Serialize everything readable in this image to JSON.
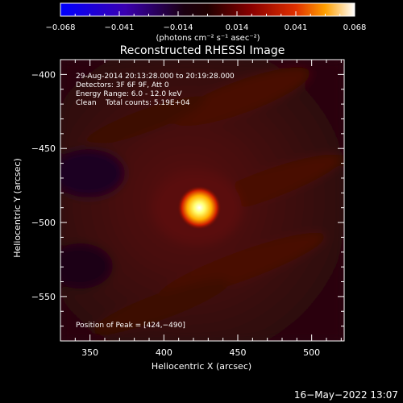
{
  "chart_data": {
    "type": "heatmap",
    "title": "Reconstructed RHESSI Image",
    "xlabel": "Heliocentric X (arcsec)",
    "ylabel": "Heliocentric Y (arcsec)",
    "xlim": [
      330,
      522
    ],
    "ylim": [
      -580,
      -390
    ],
    "xticks": [
      350,
      400,
      450,
      500
    ],
    "yticks": [
      -400,
      -450,
      -500,
      -550
    ],
    "xtick_labels": [
      "350",
      "400",
      "450",
      "500"
    ],
    "ytick_labels": [
      "−400",
      "−450",
      "−500",
      "−550"
    ],
    "colorbar": {
      "range": [
        -0.068,
        0.068
      ],
      "tick_labels": [
        "−0.068",
        "−0.041",
        "−0.014",
        "0.014",
        "0.041",
        "0.068"
      ],
      "unit_label": "(photons cm⁻² s⁻¹ asec⁻²)"
    },
    "peak": {
      "x": 424,
      "y": -490
    },
    "annotations": {
      "time": "29-Aug-2014 20:13:28.000 to 20:19:28.000",
      "detectors": "Detectors: 3F 6F 9F, Att 0",
      "energy": "Energy Range: 6.0 - 12.0 keV",
      "method": "Clean    Total counts: 5.19E+04",
      "peak_text": "Position of Peak = [424,−490]"
    },
    "colors": {
      "text": "#ffffff",
      "background": "#000000"
    }
  },
  "footer": {
    "date": "16−May−2022 13:07"
  }
}
